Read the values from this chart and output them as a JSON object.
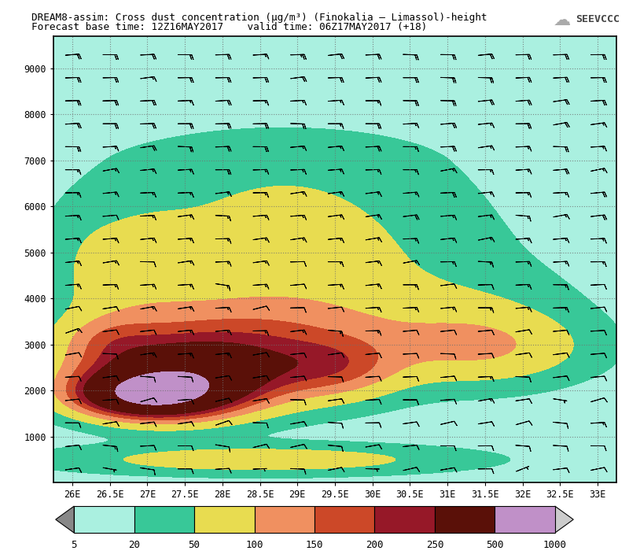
{
  "title_line1": "DREAM8-assim: Cross dust concentration (μg/m³) (Finokalia – Limassol)-height",
  "title_line2": "Forecast base time: 12Z16MAY2017    valid time: 06Z17MAY2017 (+18)",
  "xmin": 25.75,
  "xmax": 33.25,
  "ymin": 0,
  "ymax": 9700,
  "xticks": [
    26,
    26.5,
    27,
    27.5,
    28,
    28.5,
    29,
    29.5,
    30,
    30.5,
    31,
    31.5,
    32,
    32.5,
    33
  ],
  "yticks": [
    1000,
    2000,
    3000,
    4000,
    5000,
    6000,
    7000,
    8000,
    9000
  ],
  "colorbar_levels": [
    5,
    20,
    50,
    100,
    150,
    200,
    250,
    500,
    1000
  ],
  "colorbar_colors": [
    "#aaf0e0",
    "#38c898",
    "#e8dc50",
    "#f09060",
    "#cc4828",
    "#961828",
    "#5a1008",
    "#c090c8"
  ],
  "background_color": "#ffffff",
  "plot_bg": "#d0f0f8",
  "logo_text": "SEEVCCC"
}
